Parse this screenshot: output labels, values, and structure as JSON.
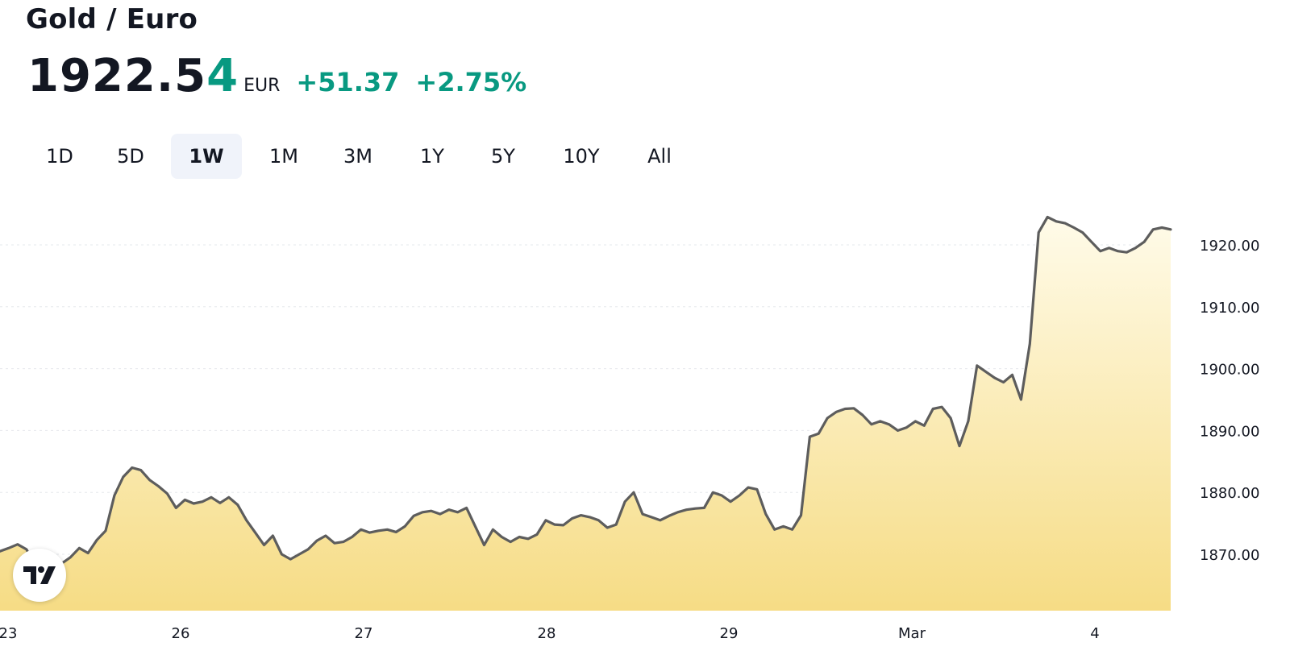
{
  "header": {
    "title": "Gold / Euro",
    "price_main": "1922.5",
    "price_last_digit": "4",
    "currency": "EUR",
    "change_abs": "+51.37",
    "change_pct": "+2.75%"
  },
  "range_tabs": [
    {
      "label": "1D",
      "active": false
    },
    {
      "label": "5D",
      "active": false
    },
    {
      "label": "1W",
      "active": true
    },
    {
      "label": "1M",
      "active": false
    },
    {
      "label": "3M",
      "active": false
    },
    {
      "label": "1Y",
      "active": false
    },
    {
      "label": "5Y",
      "active": false
    },
    {
      "label": "10Y",
      "active": false
    },
    {
      "label": "All",
      "active": false
    }
  ],
  "colors": {
    "up": "#089981",
    "line": "#5d5d5d",
    "fill_top": "#fffbe9",
    "fill_bottom": "#f6dc85",
    "grid": "#e6e8ec"
  },
  "logo_icon": "tradingview-logo-icon",
  "chart_data": {
    "type": "area",
    "title": "",
    "xlabel": "",
    "ylabel": "",
    "x_ticks": [
      "23",
      "26",
      "27",
      "28",
      "29",
      "Mar",
      "4"
    ],
    "y_ticks": [
      "1920.00",
      "1910.00",
      "1900.00",
      "1890.00",
      "1880.00",
      "1870.00"
    ],
    "ylim": [
      1862,
      1926
    ],
    "grid": {
      "horizontal": true,
      "vertical": false
    },
    "y_axis_position": "right",
    "series": [
      {
        "values": [
          1870.5,
          1871.0,
          1871.6,
          1870.8,
          1868.2,
          1866.4,
          1864.7,
          1868.5,
          1869.5,
          1871.0,
          1870.2,
          1872.3,
          1873.8,
          1879.5,
          1882.5,
          1884.0,
          1883.6,
          1882.0,
          1881.0,
          1879.8,
          1877.5,
          1878.8,
          1878.2,
          1878.5,
          1879.2,
          1878.3,
          1879.2,
          1878.0,
          1875.5,
          1873.5,
          1871.5,
          1873.0,
          1870.0,
          1869.2,
          1870.0,
          1870.8,
          1872.2,
          1873.0,
          1871.8,
          1872.0,
          1872.8,
          1874.0,
          1873.5,
          1873.8,
          1874.0,
          1873.6,
          1874.5,
          1876.2,
          1876.8,
          1877.0,
          1876.5,
          1877.2,
          1876.8,
          1877.5,
          1874.5,
          1871.5,
          1874.0,
          1872.8,
          1872.0,
          1872.8,
          1872.5,
          1873.2,
          1875.5,
          1874.8,
          1874.7,
          1875.8,
          1876.3,
          1876.0,
          1875.5,
          1874.3,
          1874.8,
          1878.5,
          1880.0,
          1876.5,
          1876.0,
          1875.5,
          1876.2,
          1876.8,
          1877.2,
          1877.4,
          1877.5,
          1880.0,
          1879.5,
          1878.5,
          1879.5,
          1880.8,
          1880.5,
          1876.5,
          1874.0,
          1874.5,
          1874.0,
          1876.3,
          1889.0,
          1889.5,
          1892.0,
          1893.0,
          1893.5,
          1893.6,
          1892.5,
          1891.0,
          1891.5,
          1891.0,
          1890.0,
          1890.5,
          1891.5,
          1890.8,
          1893.5,
          1893.8,
          1892.0,
          1887.5,
          1891.5,
          1900.5,
          1899.5,
          1898.5,
          1897.8,
          1899.0,
          1895.0,
          1904.0,
          1922.0,
          1924.5,
          1923.8,
          1923.5,
          1922.8,
          1922.0,
          1920.5,
          1919.0,
          1919.5,
          1919.0,
          1918.8,
          1919.5,
          1920.5,
          1922.5,
          1922.8,
          1922.5
        ]
      }
    ]
  }
}
